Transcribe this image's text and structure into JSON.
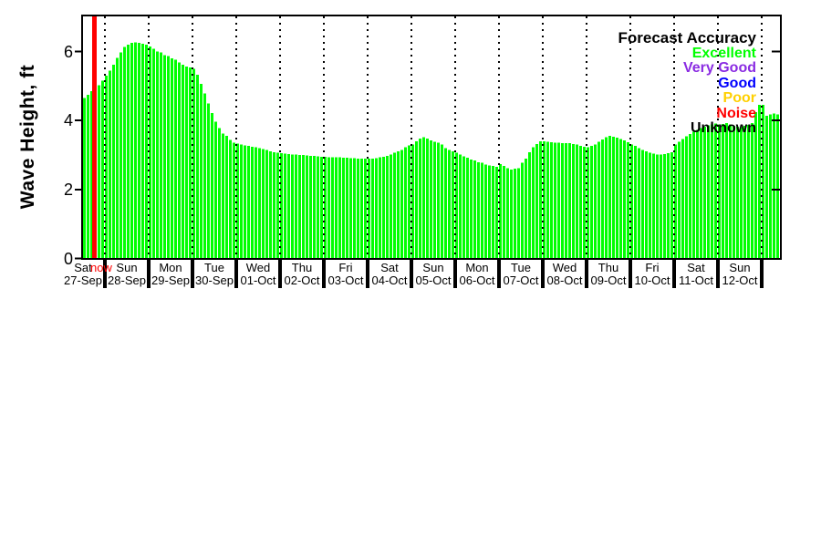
{
  "page": {
    "background": "#FFFFFF"
  },
  "chart_data": {
    "type": "bar",
    "title": "",
    "xlabel": "",
    "ylabel": "Wave Height, ft",
    "ylim": [
      0,
      7.05
    ],
    "yticks": [
      0,
      2,
      4,
      6
    ],
    "grid": "vertical dotted black lines at each day boundary",
    "legend_position": "top-right",
    "bar_color": "#00FF00",
    "axis_color": "#000000",
    "hours_per_bar": 2,
    "days": [
      {
        "day": "Sat",
        "date": "27-Sep"
      },
      {
        "day": "Sun",
        "date": "28-Sep"
      },
      {
        "day": "Mon",
        "date": "29-Sep"
      },
      {
        "day": "Tue",
        "date": "30-Sep"
      },
      {
        "day": "Wed",
        "date": "01-Oct"
      },
      {
        "day": "Thu",
        "date": "02-Oct"
      },
      {
        "day": "Fri",
        "date": "03-Oct"
      },
      {
        "day": "Sat",
        "date": "04-Oct"
      },
      {
        "day": "Sun",
        "date": "05-Oct"
      },
      {
        "day": "Mon",
        "date": "06-Oct"
      },
      {
        "day": "Tue",
        "date": "07-Oct"
      },
      {
        "day": "Wed",
        "date": "08-Oct"
      },
      {
        "day": "Thu",
        "date": "09-Oct"
      },
      {
        "day": "Fri",
        "date": "10-Oct"
      },
      {
        "day": "Sat",
        "date": "11-Oct"
      },
      {
        "day": "Sun",
        "date": "12-Oct"
      }
    ],
    "wave_height_ft": [
      4.65,
      4.75,
      4.85,
      4.95,
      5.02,
      5.16,
      5.3,
      5.45,
      5.62,
      5.82,
      5.97,
      6.13,
      6.2,
      6.25,
      6.27,
      6.25,
      6.22,
      6.2,
      6.15,
      6.08,
      6.0,
      5.97,
      5.9,
      5.87,
      5.8,
      5.76,
      5.68,
      5.62,
      5.57,
      5.54,
      5.5,
      5.32,
      5.06,
      4.78,
      4.5,
      4.22,
      3.97,
      3.78,
      3.62,
      3.55,
      3.44,
      3.36,
      3.33,
      3.3,
      3.28,
      3.26,
      3.24,
      3.22,
      3.2,
      3.17,
      3.14,
      3.11,
      3.08,
      3.06,
      3.05,
      3.04,
      3.03,
      3.02,
      3.01,
      3.0,
      3.0,
      2.99,
      2.98,
      2.97,
      2.96,
      2.95,
      2.95,
      2.94,
      2.94,
      2.93,
      2.93,
      2.92,
      2.92,
      2.91,
      2.91,
      2.9,
      2.9,
      2.9,
      2.9,
      2.9,
      2.91,
      2.93,
      2.95,
      2.98,
      3.02,
      3.06,
      3.1,
      3.15,
      3.22,
      3.28,
      3.3,
      3.4,
      3.48,
      3.52,
      3.47,
      3.42,
      3.38,
      3.36,
      3.3,
      3.2,
      3.14,
      3.1,
      3.07,
      3.02,
      2.96,
      2.92,
      2.87,
      2.84,
      2.79,
      2.77,
      2.72,
      2.7,
      2.68,
      2.66,
      2.74,
      2.68,
      2.62,
      2.58,
      2.6,
      2.62,
      2.77,
      2.9,
      3.08,
      3.22,
      3.32,
      3.4,
      3.4,
      3.38,
      3.37,
      3.36,
      3.36,
      3.35,
      3.35,
      3.34,
      3.32,
      3.3,
      3.27,
      3.24,
      3.22,
      3.26,
      3.31,
      3.38,
      3.45,
      3.51,
      3.55,
      3.53,
      3.5,
      3.46,
      3.42,
      3.37,
      3.31,
      3.26,
      3.2,
      3.15,
      3.1,
      3.07,
      3.04,
      3.02,
      3.02,
      3.03,
      3.05,
      3.08,
      3.3,
      3.38,
      3.46,
      3.54,
      3.61,
      3.67,
      3.73,
      3.78,
      3.82,
      3.86,
      3.89,
      3.91,
      3.88,
      3.9,
      3.92,
      3.89,
      3.85,
      3.82,
      3.8,
      3.84,
      3.87,
      3.93,
      4.24,
      4.45,
      4.45,
      4.14,
      4.18,
      4.2,
      4.18
    ],
    "now_marker": {
      "label": "now",
      "color": "#FF0000",
      "bar_index": 3
    },
    "legend": {
      "title": "Forecast Accuracy",
      "entries": [
        {
          "label": "Excellent",
          "color": "#00FF00"
        },
        {
          "label": "Very Good",
          "color": "#8A2BE2"
        },
        {
          "label": "Good",
          "color": "#0000FF"
        },
        {
          "label": "Poor",
          "color": "#FFD000"
        },
        {
          "label": "Noise",
          "color": "#FF0000"
        },
        {
          "label": "Unknown",
          "color": "#000000"
        }
      ]
    }
  }
}
